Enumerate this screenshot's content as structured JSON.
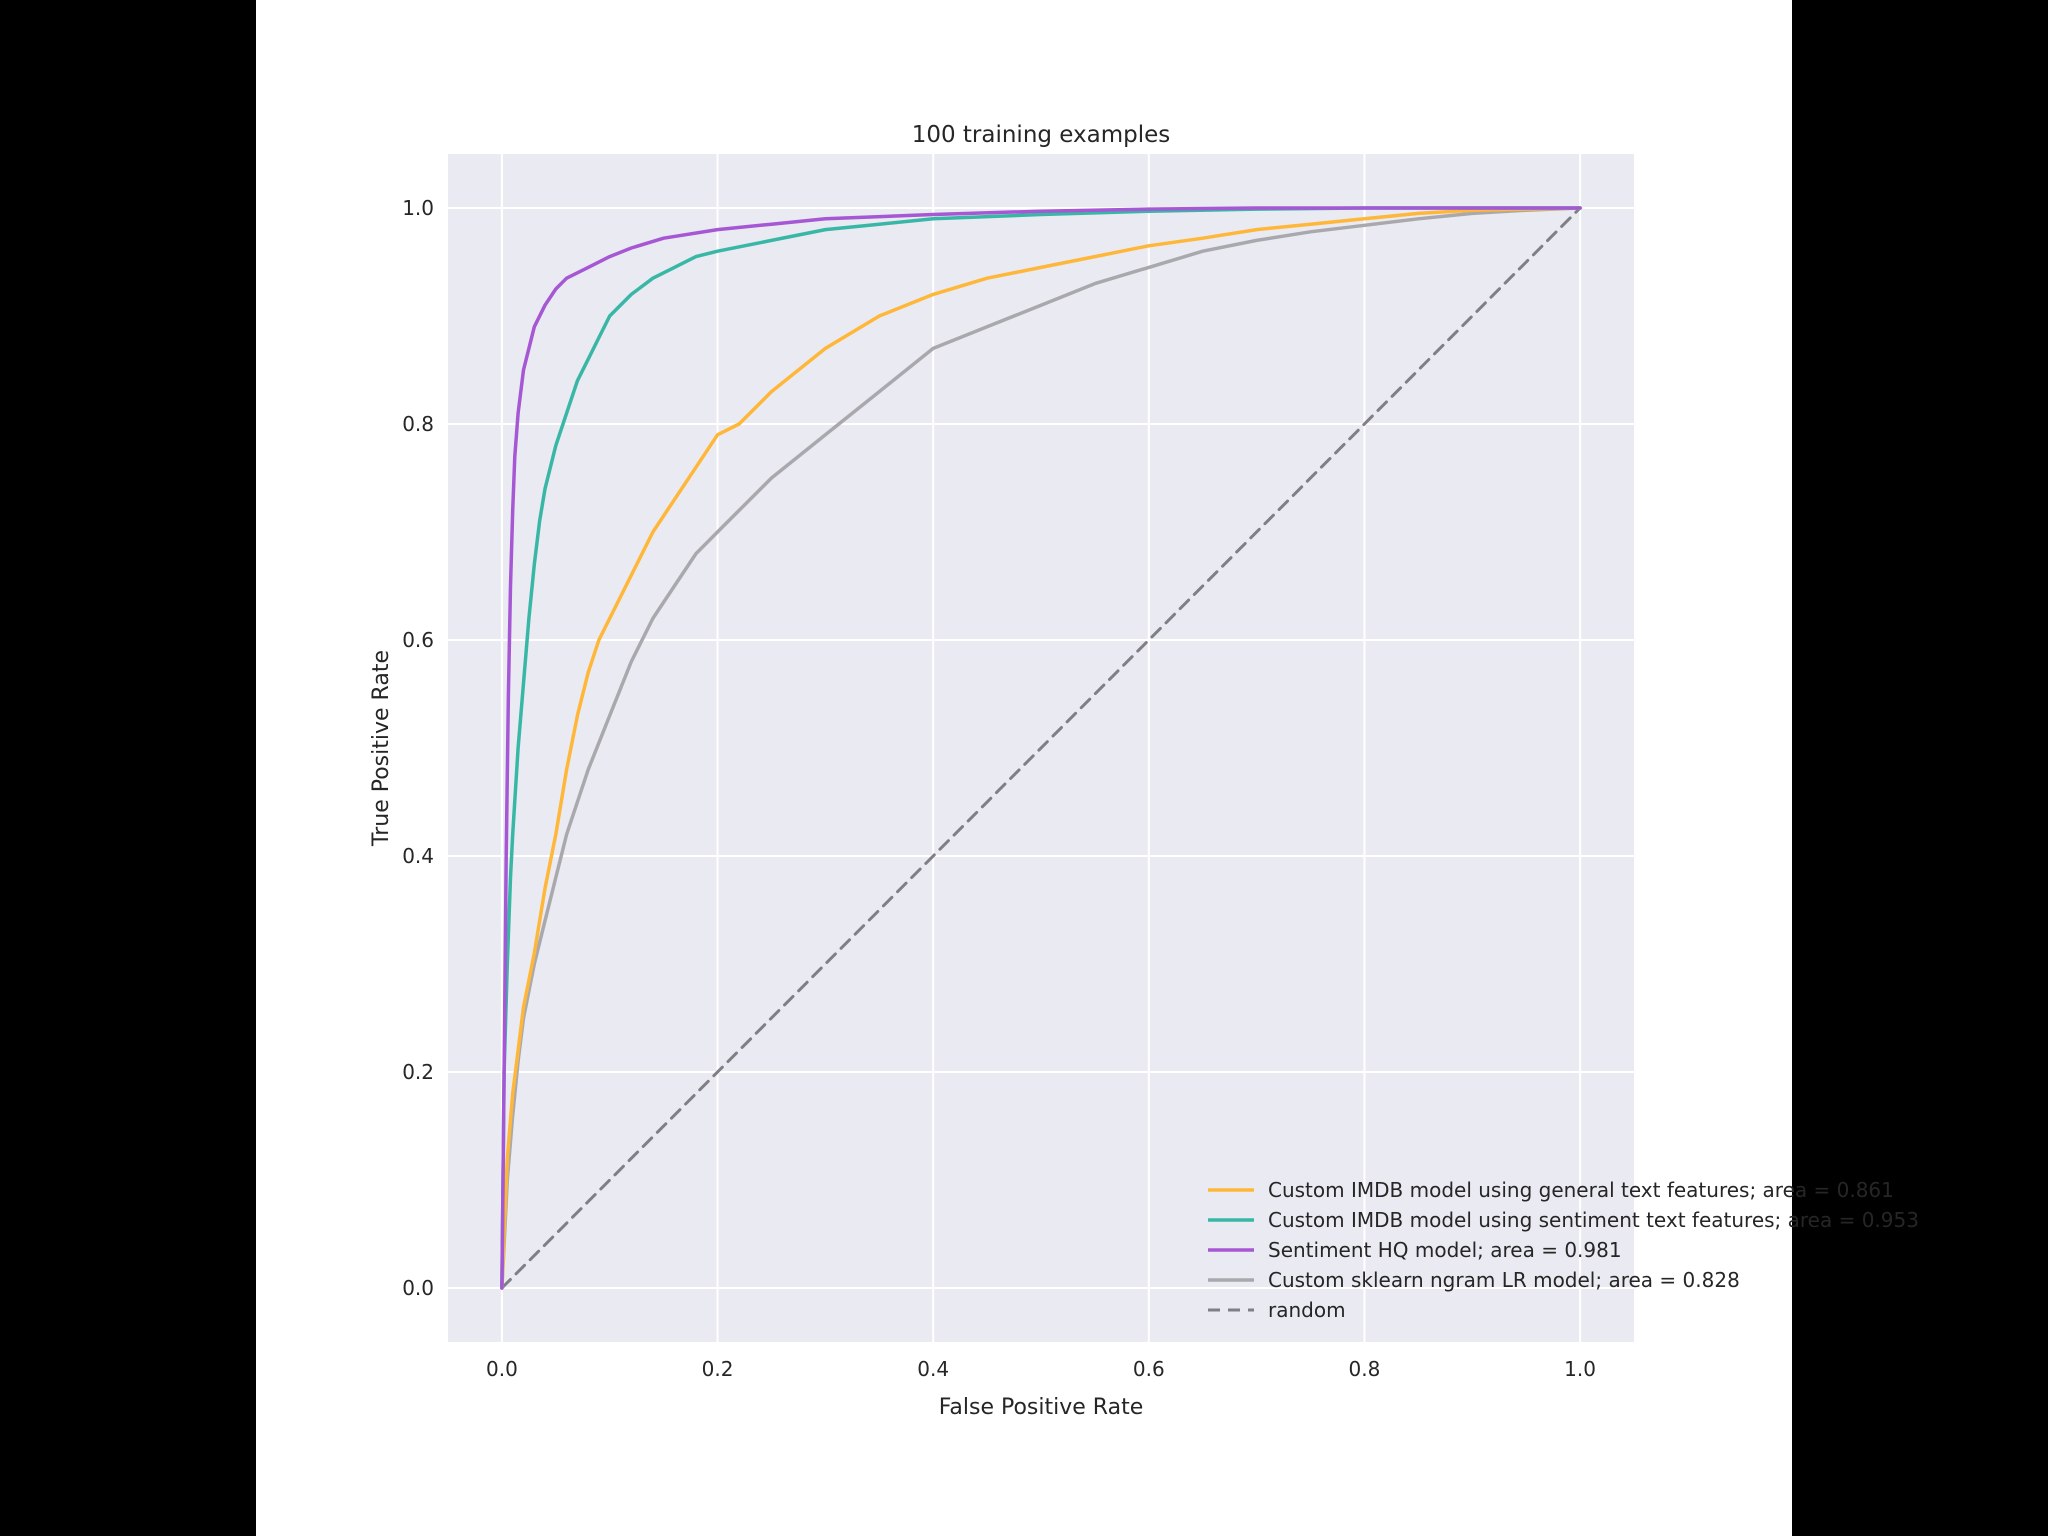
{
  "chart_data": {
    "type": "line",
    "title": "100 training examples",
    "xlabel": "False Positive Rate",
    "ylabel": "True Positive Rate",
    "xlim": [
      -0.05,
      1.05
    ],
    "ylim": [
      -0.05,
      1.05
    ],
    "xticks": [
      0.0,
      0.2,
      0.4,
      0.6,
      0.8,
      1.0
    ],
    "yticks": [
      0.0,
      0.2,
      0.4,
      0.6,
      0.8,
      1.0
    ],
    "xtick_labels": [
      "0.0",
      "0.2",
      "0.4",
      "0.6",
      "0.8",
      "1.0"
    ],
    "ytick_labels": [
      "0.0",
      "0.2",
      "0.4",
      "0.6",
      "0.8",
      "1.0"
    ],
    "grid": true,
    "background_color": "#eaeaf2",
    "grid_color": "#ffffff",
    "legend_position": "lower-right",
    "series": [
      {
        "name": "Custom IMDB model using general text features; area = 0.861",
        "color": "#ffb73a",
        "style": "solid",
        "x": [
          0,
          0.002,
          0.005,
          0.01,
          0.015,
          0.02,
          0.03,
          0.04,
          0.05,
          0.06,
          0.07,
          0.08,
          0.09,
          0.1,
          0.12,
          0.14,
          0.16,
          0.18,
          0.2,
          0.22,
          0.25,
          0.3,
          0.35,
          0.4,
          0.45,
          0.5,
          0.55,
          0.6,
          0.65,
          0.7,
          0.75,
          0.8,
          0.85,
          0.9,
          0.95,
          1.0
        ],
        "y": [
          0,
          0.05,
          0.12,
          0.18,
          0.22,
          0.26,
          0.31,
          0.37,
          0.42,
          0.48,
          0.53,
          0.57,
          0.6,
          0.62,
          0.66,
          0.7,
          0.73,
          0.76,
          0.79,
          0.8,
          0.83,
          0.87,
          0.9,
          0.92,
          0.935,
          0.945,
          0.955,
          0.965,
          0.972,
          0.98,
          0.985,
          0.99,
          0.995,
          0.998,
          0.999,
          1.0
        ]
      },
      {
        "name": "Custom IMDB model using sentiment text features; area = 0.953",
        "color": "#39b7a6",
        "style": "solid",
        "x": [
          0,
          0.002,
          0.005,
          0.008,
          0.01,
          0.015,
          0.02,
          0.025,
          0.03,
          0.035,
          0.04,
          0.05,
          0.06,
          0.07,
          0.08,
          0.09,
          0.1,
          0.12,
          0.14,
          0.16,
          0.18,
          0.2,
          0.25,
          0.3,
          0.35,
          0.4,
          0.5,
          0.6,
          0.7,
          0.8,
          0.9,
          1.0
        ],
        "y": [
          0,
          0.2,
          0.3,
          0.38,
          0.42,
          0.5,
          0.56,
          0.62,
          0.67,
          0.71,
          0.74,
          0.78,
          0.81,
          0.84,
          0.86,
          0.88,
          0.9,
          0.92,
          0.935,
          0.945,
          0.955,
          0.96,
          0.97,
          0.98,
          0.985,
          0.99,
          0.994,
          0.997,
          0.999,
          1.0,
          1.0,
          1.0
        ]
      },
      {
        "name": "Sentiment HQ model; area = 0.981",
        "color": "#a657d4",
        "style": "solid",
        "x": [
          0,
          0.002,
          0.004,
          0.006,
          0.008,
          0.01,
          0.012,
          0.015,
          0.02,
          0.025,
          0.03,
          0.04,
          0.05,
          0.06,
          0.08,
          0.1,
          0.12,
          0.15,
          0.2,
          0.25,
          0.3,
          0.4,
          0.5,
          0.6,
          0.7,
          0.8,
          0.9,
          1.0
        ],
        "y": [
          0,
          0.2,
          0.4,
          0.55,
          0.65,
          0.72,
          0.77,
          0.81,
          0.85,
          0.87,
          0.89,
          0.91,
          0.925,
          0.935,
          0.945,
          0.955,
          0.963,
          0.972,
          0.98,
          0.985,
          0.99,
          0.994,
          0.997,
          0.999,
          1.0,
          1.0,
          1.0,
          1.0
        ]
      },
      {
        "name": "Custom sklearn ngram LR model; area = 0.828",
        "color": "#a9a9ad",
        "style": "solid",
        "x": [
          0,
          0.002,
          0.005,
          0.01,
          0.015,
          0.02,
          0.03,
          0.04,
          0.05,
          0.06,
          0.07,
          0.08,
          0.1,
          0.12,
          0.14,
          0.16,
          0.18,
          0.2,
          0.22,
          0.25,
          0.3,
          0.35,
          0.4,
          0.45,
          0.5,
          0.55,
          0.6,
          0.65,
          0.7,
          0.75,
          0.8,
          0.85,
          0.9,
          0.95,
          1.0
        ],
        "y": [
          0,
          0.04,
          0.1,
          0.16,
          0.21,
          0.25,
          0.3,
          0.34,
          0.38,
          0.42,
          0.45,
          0.48,
          0.53,
          0.58,
          0.62,
          0.65,
          0.68,
          0.7,
          0.72,
          0.75,
          0.79,
          0.83,
          0.87,
          0.89,
          0.91,
          0.93,
          0.945,
          0.96,
          0.97,
          0.978,
          0.984,
          0.99,
          0.995,
          0.998,
          1.0
        ]
      },
      {
        "name": "random",
        "color": "#7f7f86",
        "style": "dashed",
        "x": [
          0,
          1
        ],
        "y": [
          0,
          1
        ]
      }
    ]
  }
}
